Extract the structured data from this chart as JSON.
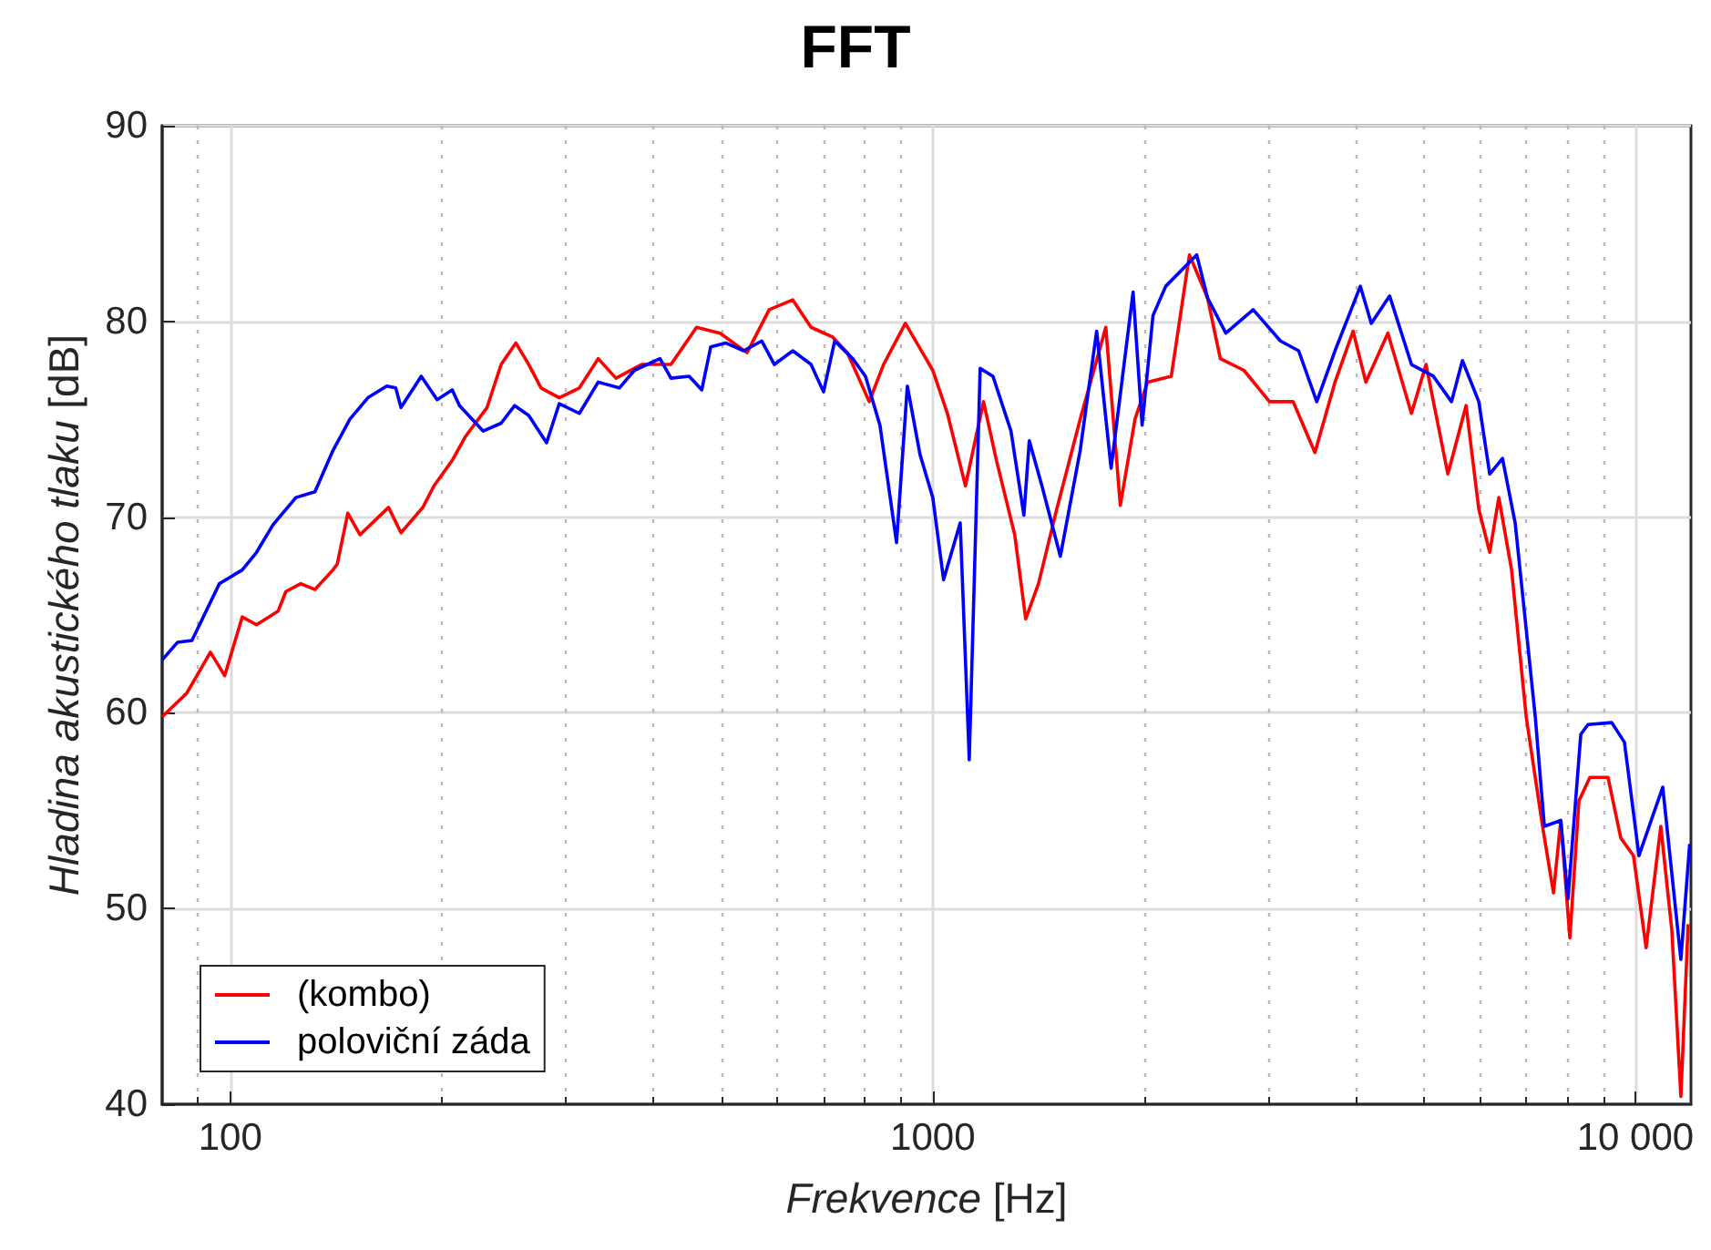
{
  "chart_data": {
    "type": "line",
    "title": "FFT",
    "xlabel": "Frekvence [Hz]",
    "ylabel": "Hladina akustického tlaku [dB]",
    "log": "x",
    "xlim": [
      80,
      12000
    ],
    "xticks": [
      100,
      1000,
      {
        "value": 10000,
        "label": "10 000"
      }
    ],
    "ylim": [
      40,
      90
    ],
    "yticks": [
      40,
      50,
      60,
      70,
      80,
      90
    ],
    "grid": true,
    "legend": "bottom left",
    "marker": "none",
    "line_style": "solid",
    "series": [
      {
        "name": "(kombo)",
        "color": "#ff0000",
        "x": [
          80,
          86.7,
          93.7,
          98.2,
          104,
          109,
          117,
          120,
          126,
          132,
          140,
          142,
          147,
          153,
          168,
          175,
          188,
          195,
          207,
          216,
          232,
          243,
          255,
          266,
          277,
          294,
          314,
          334,
          354,
          385,
          424,
          461,
          498,
          544,
          585,
          632,
          671,
          720,
          756,
          812,
          851,
          914,
          1000,
          1049,
          1113,
          1181,
          1232,
          1308,
          1356,
          1414,
          1501,
          1621,
          1763,
          1849,
          1940,
          2022,
          2185,
          2319,
          2461,
          2566,
          2773,
          3015,
          3258,
          3499,
          3737,
          3965,
          4134,
          4444,
          4801,
          5036,
          5410,
          5742,
          5987,
          6205,
          6393,
          6666,
          6993,
          7378,
          7647,
          7832,
          8069,
          8313,
          8616,
          9145,
          9535,
          9940,
          10360,
          10870,
          11270,
          11610,
          11890
        ],
        "values": [
          59.8,
          61.0,
          63.1,
          61.9,
          64.9,
          64.5,
          65.2,
          66.2,
          66.6,
          66.3,
          67.3,
          67.6,
          70.2,
          69.1,
          70.5,
          69.2,
          70.5,
          71.6,
          72.9,
          74.1,
          75.6,
          77.8,
          78.9,
          77.8,
          76.6,
          76.1,
          76.6,
          78.1,
          77.1,
          77.8,
          77.8,
          79.7,
          79.4,
          78.4,
          80.6,
          81.1,
          79.7,
          79.2,
          78.4,
          75.9,
          77.8,
          79.9,
          77.5,
          75.3,
          71.6,
          75.9,
          72.9,
          69.1,
          64.8,
          66.6,
          70.4,
          75.0,
          79.7,
          70.6,
          75.0,
          76.9,
          77.2,
          83.4,
          81.2,
          78.1,
          77.5,
          75.9,
          75.9,
          73.3,
          76.9,
          79.5,
          76.9,
          79.4,
          75.3,
          77.8,
          72.2,
          75.7,
          70.4,
          68.2,
          71.0,
          67.3,
          59.8,
          54.2,
          50.8,
          54.5,
          48.5,
          55.5,
          56.7,
          56.7,
          53.6,
          52.7,
          48.0,
          54.2,
          48.9,
          40.4,
          49.2
        ]
      },
      {
        "name": "poloviční záda",
        "color": "#0000ff",
        "x": [
          80,
          84.1,
          88.2,
          96.5,
          104,
          109,
          115,
          124,
          132,
          140,
          148,
          157,
          167,
          172,
          175,
          187,
          197,
          207,
          212,
          229,
          243,
          254,
          266,
          282,
          294,
          314,
          334,
          358,
          376,
          409,
          424,
          450,
          469,
          483,
          507,
          538,
          571,
          595,
          632,
          671,
          699,
          725,
          769,
          802,
          841,
          888,
          920,
          959,
          1000,
          1036,
          1094,
          1127,
          1168,
          1218,
          1292,
          1348,
          1372,
          1430,
          1519,
          1621,
          1711,
          1794,
          1928,
          1986,
          2058,
          2146,
          2375,
          2461,
          2613,
          2858,
          3125,
          3317,
          3520,
          3737,
          4061,
          4209,
          4470,
          4801,
          5158,
          5475,
          5674,
          5987,
          6205,
          6470,
          6745,
          7204,
          7422,
          7832,
          8020,
          8363,
          8565,
          9256,
          9649,
          10120,
          10940,
          11610,
          11950
        ],
        "values": [
          62.7,
          63.6,
          63.7,
          66.6,
          67.3,
          68.2,
          69.6,
          71.0,
          71.3,
          73.4,
          75.0,
          76.1,
          76.7,
          76.6,
          75.6,
          77.2,
          76.0,
          76.5,
          75.7,
          74.4,
          74.8,
          75.7,
          75.2,
          73.8,
          75.8,
          75.3,
          76.9,
          76.6,
          77.5,
          78.1,
          77.1,
          77.2,
          76.5,
          78.7,
          78.9,
          78.5,
          79.0,
          77.8,
          78.5,
          77.8,
          76.4,
          79.0,
          78.1,
          77.2,
          74.7,
          68.7,
          76.7,
          73.2,
          71.0,
          66.8,
          69.7,
          57.6,
          77.6,
          77.2,
          74.4,
          70.1,
          73.9,
          71.6,
          68.0,
          73.4,
          79.5,
          72.5,
          81.5,
          74.7,
          80.3,
          81.8,
          83.4,
          81.2,
          79.4,
          80.6,
          79.0,
          78.5,
          75.9,
          78.5,
          81.8,
          79.9,
          81.3,
          77.8,
          77.2,
          75.9,
          78.0,
          75.9,
          72.2,
          73.0,
          69.7,
          59.8,
          54.2,
          54.5,
          50.5,
          58.9,
          59.4,
          59.5,
          58.5,
          52.7,
          56.2,
          47.4,
          53.3
        ]
      }
    ]
  }
}
